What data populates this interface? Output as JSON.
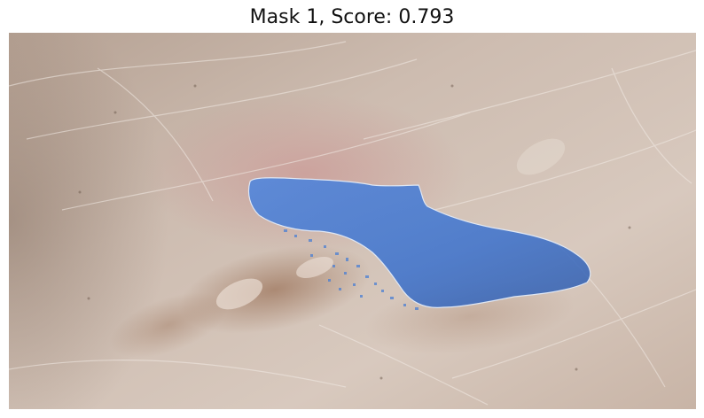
{
  "figure": {
    "title": "Mask 1, Score: 0.793"
  },
  "colors": {
    "mask_fill": "#3f79d6",
    "mask_edge": "#dfe7f4",
    "skin_base": "#c9b7aa",
    "lesion_brown": "#8a5a3c"
  }
}
